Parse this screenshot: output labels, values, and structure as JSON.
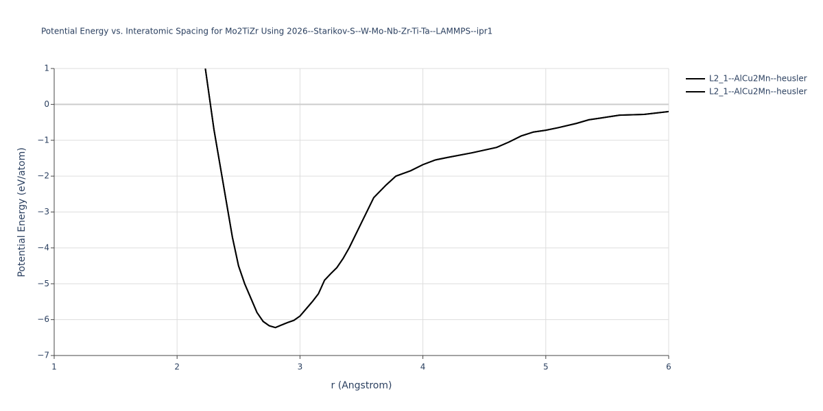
{
  "chart_data": {
    "type": "line",
    "title": "Potential Energy vs. Interatomic Spacing for Mo2TiZr Using 2026--Starikov-S--W-Mo-Nb-Zr-Ti-Ta--LAMMPS--ipr1",
    "x_label": "r (Angstrom)",
    "y_label": "Potential Energy (eV/atom)",
    "x": [
      2.23,
      2.3,
      2.35,
      2.4,
      2.45,
      2.5,
      2.55,
      2.6,
      2.65,
      2.7,
      2.75,
      2.8,
      2.85,
      2.9,
      2.95,
      3.0,
      3.05,
      3.1,
      3.15,
      3.2,
      3.25,
      3.3,
      3.35,
      3.4,
      3.5,
      3.6,
      3.7,
      3.78,
      3.9,
      4.0,
      4.1,
      4.2,
      4.4,
      4.6,
      4.7,
      4.8,
      4.9,
      5.0,
      5.1,
      5.25,
      5.35,
      5.45,
      5.6,
      5.8,
      6.0
    ],
    "series": [
      {
        "name": "L2_1--AlCu2Mn--heusler",
        "color": "#000000",
        "values": [
          1.0,
          -0.7,
          -1.7,
          -2.7,
          -3.7,
          -4.5,
          -5.0,
          -5.4,
          -5.8,
          -6.05,
          -6.17,
          -6.22,
          -6.15,
          -6.08,
          -6.02,
          -5.9,
          -5.7,
          -5.5,
          -5.28,
          -4.9,
          -4.72,
          -4.55,
          -4.3,
          -4.0,
          -3.3,
          -2.6,
          -2.25,
          -2.0,
          -1.85,
          -1.68,
          -1.55,
          -1.48,
          -1.35,
          -1.2,
          -1.05,
          -0.88,
          -0.77,
          -0.72,
          -0.65,
          -0.53,
          -0.43,
          -0.38,
          -0.3,
          -0.28,
          -0.2
        ]
      },
      {
        "name": "L2_1--AlCu2Mn--heusler",
        "color": "#000000",
        "values": [
          1.0,
          -0.7,
          -1.7,
          -2.7,
          -3.7,
          -4.5,
          -5.0,
          -5.4,
          -5.8,
          -6.05,
          -6.17,
          -6.22,
          -6.15,
          -6.08,
          -6.02,
          -5.9,
          -5.7,
          -5.5,
          -5.28,
          -4.9,
          -4.72,
          -4.55,
          -4.3,
          -4.0,
          -3.3,
          -2.6,
          -2.25,
          -2.0,
          -1.85,
          -1.68,
          -1.55,
          -1.48,
          -1.35,
          -1.2,
          -1.05,
          -0.88,
          -0.77,
          -0.72,
          -0.65,
          -0.53,
          -0.43,
          -0.38,
          -0.3,
          -0.28,
          -0.2
        ]
      }
    ],
    "xlim": [
      1,
      6
    ],
    "xticks": [
      1,
      2,
      3,
      4,
      5,
      6
    ],
    "ylim": [
      -7,
      1
    ],
    "yticks": [
      {
        "value": -7,
        "label": "−7"
      },
      {
        "value": -6,
        "label": "−6"
      },
      {
        "value": -5,
        "label": "−5"
      },
      {
        "value": -4,
        "label": "−4"
      },
      {
        "value": -3,
        "label": "−3"
      },
      {
        "value": -2,
        "label": "−2"
      },
      {
        "value": -1,
        "label": "−1"
      },
      0,
      1
    ],
    "grid": true,
    "legend": "top-right"
  }
}
